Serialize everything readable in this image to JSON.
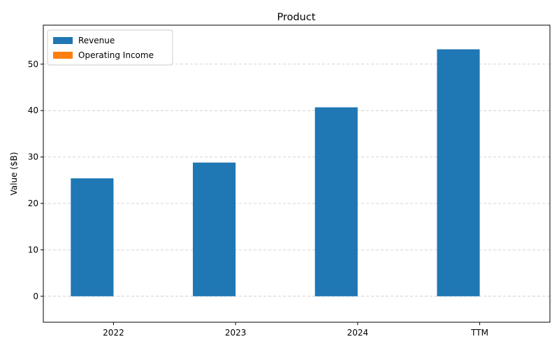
{
  "chart_data": {
    "type": "bar",
    "title": "Product",
    "xlabel": "",
    "ylabel": "Value ($B)",
    "categories": [
      "2022",
      "2023",
      "2024",
      "TTM"
    ],
    "series": [
      {
        "name": "Revenue",
        "color": "#1f77b4",
        "values": [
          25.4,
          28.8,
          40.7,
          53.2
        ]
      },
      {
        "name": "Operating Income",
        "color": "#ff7f0e",
        "values": [
          0,
          0,
          0,
          0
        ]
      }
    ],
    "ylim": [
      -5.6,
      58.4
    ],
    "yticks": [
      0,
      10,
      20,
      30,
      40,
      50
    ],
    "ytick_labels": [
      "0",
      "10",
      "20",
      "30",
      "40",
      "50"
    ],
    "grid": "horizontal dashed",
    "legend_position": "top-left"
  }
}
